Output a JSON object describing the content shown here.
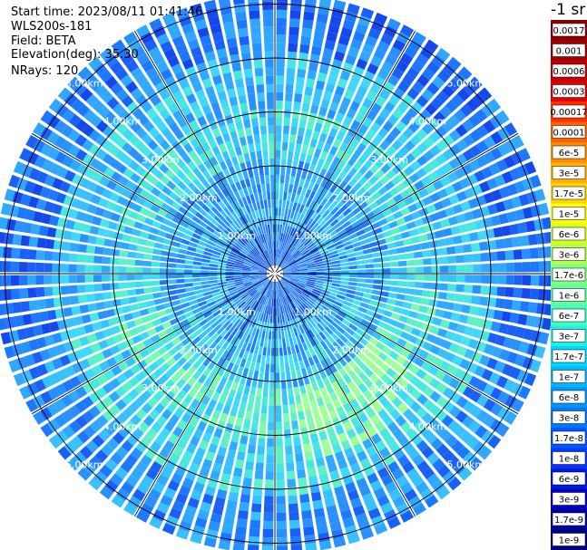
{
  "header": {
    "start_time": "Start time: 2023/08/11 01:41:46",
    "instrument": "WLS200s-181",
    "field": "Field: BETA",
    "elevation": "Elevation(deg): 35.30",
    "nrays": "NRays: 120"
  },
  "colorbar": {
    "unit_label": "-1 sr",
    "ticks": [
      "0.0017",
      "0.001",
      "0.0006",
      "0.0003",
      "0.00017",
      "0.0001",
      "6e-5",
      "3e-5",
      "1.7e-5",
      "1e-5",
      "6e-6",
      "3e-6",
      "1.7e-6",
      "1e-6",
      "6e-7",
      "3e-7",
      "1.7e-7",
      "1e-7",
      "6e-8",
      "3e-8",
      "1.7e-8",
      "1e-8",
      "6e-9",
      "3e-9",
      "1.7e-9",
      "1e-9"
    ],
    "colors": [
      "#8b0000",
      "#a00000",
      "#c00000",
      "#e00000",
      "#ff3000",
      "#ff6000",
      "#ff8c00",
      "#ffb000",
      "#ffd400",
      "#ffff00",
      "#d8ff20",
      "#b0ff50",
      "#80ff80",
      "#60ffa0",
      "#40ffc0",
      "#20f0e0",
      "#00d8ff",
      "#00b8ff",
      "#0098ff",
      "#0078ff",
      "#0058ff",
      "#0038ff",
      "#0018e0",
      "#0000c0",
      "#0000a0",
      "#000080"
    ]
  },
  "chart_data": {
    "type": "heatmap",
    "title": "",
    "field": "BETA",
    "units": "-1 sr",
    "n_rays": 120,
    "range_rings_km": [
      1.0,
      2.0,
      3.0,
      4.0,
      5.0
    ],
    "ring_labels": [
      "1.00km",
      "2.00km",
      "3.00km",
      "4.00km",
      "5.00km"
    ],
    "azimuth_lines_deg": [
      0,
      30,
      60,
      90,
      120,
      150,
      180,
      210,
      240,
      270,
      300,
      330
    ],
    "max_range_km": 5.2,
    "value_range": [
      1e-09,
      0.0017
    ],
    "scale": "log",
    "dominant_near_range": "1e-8 to 6e-8",
    "dominant_mid_range": "1e-7 to 3e-7",
    "dominant_far_range": "6e-9 to 3e-8"
  }
}
